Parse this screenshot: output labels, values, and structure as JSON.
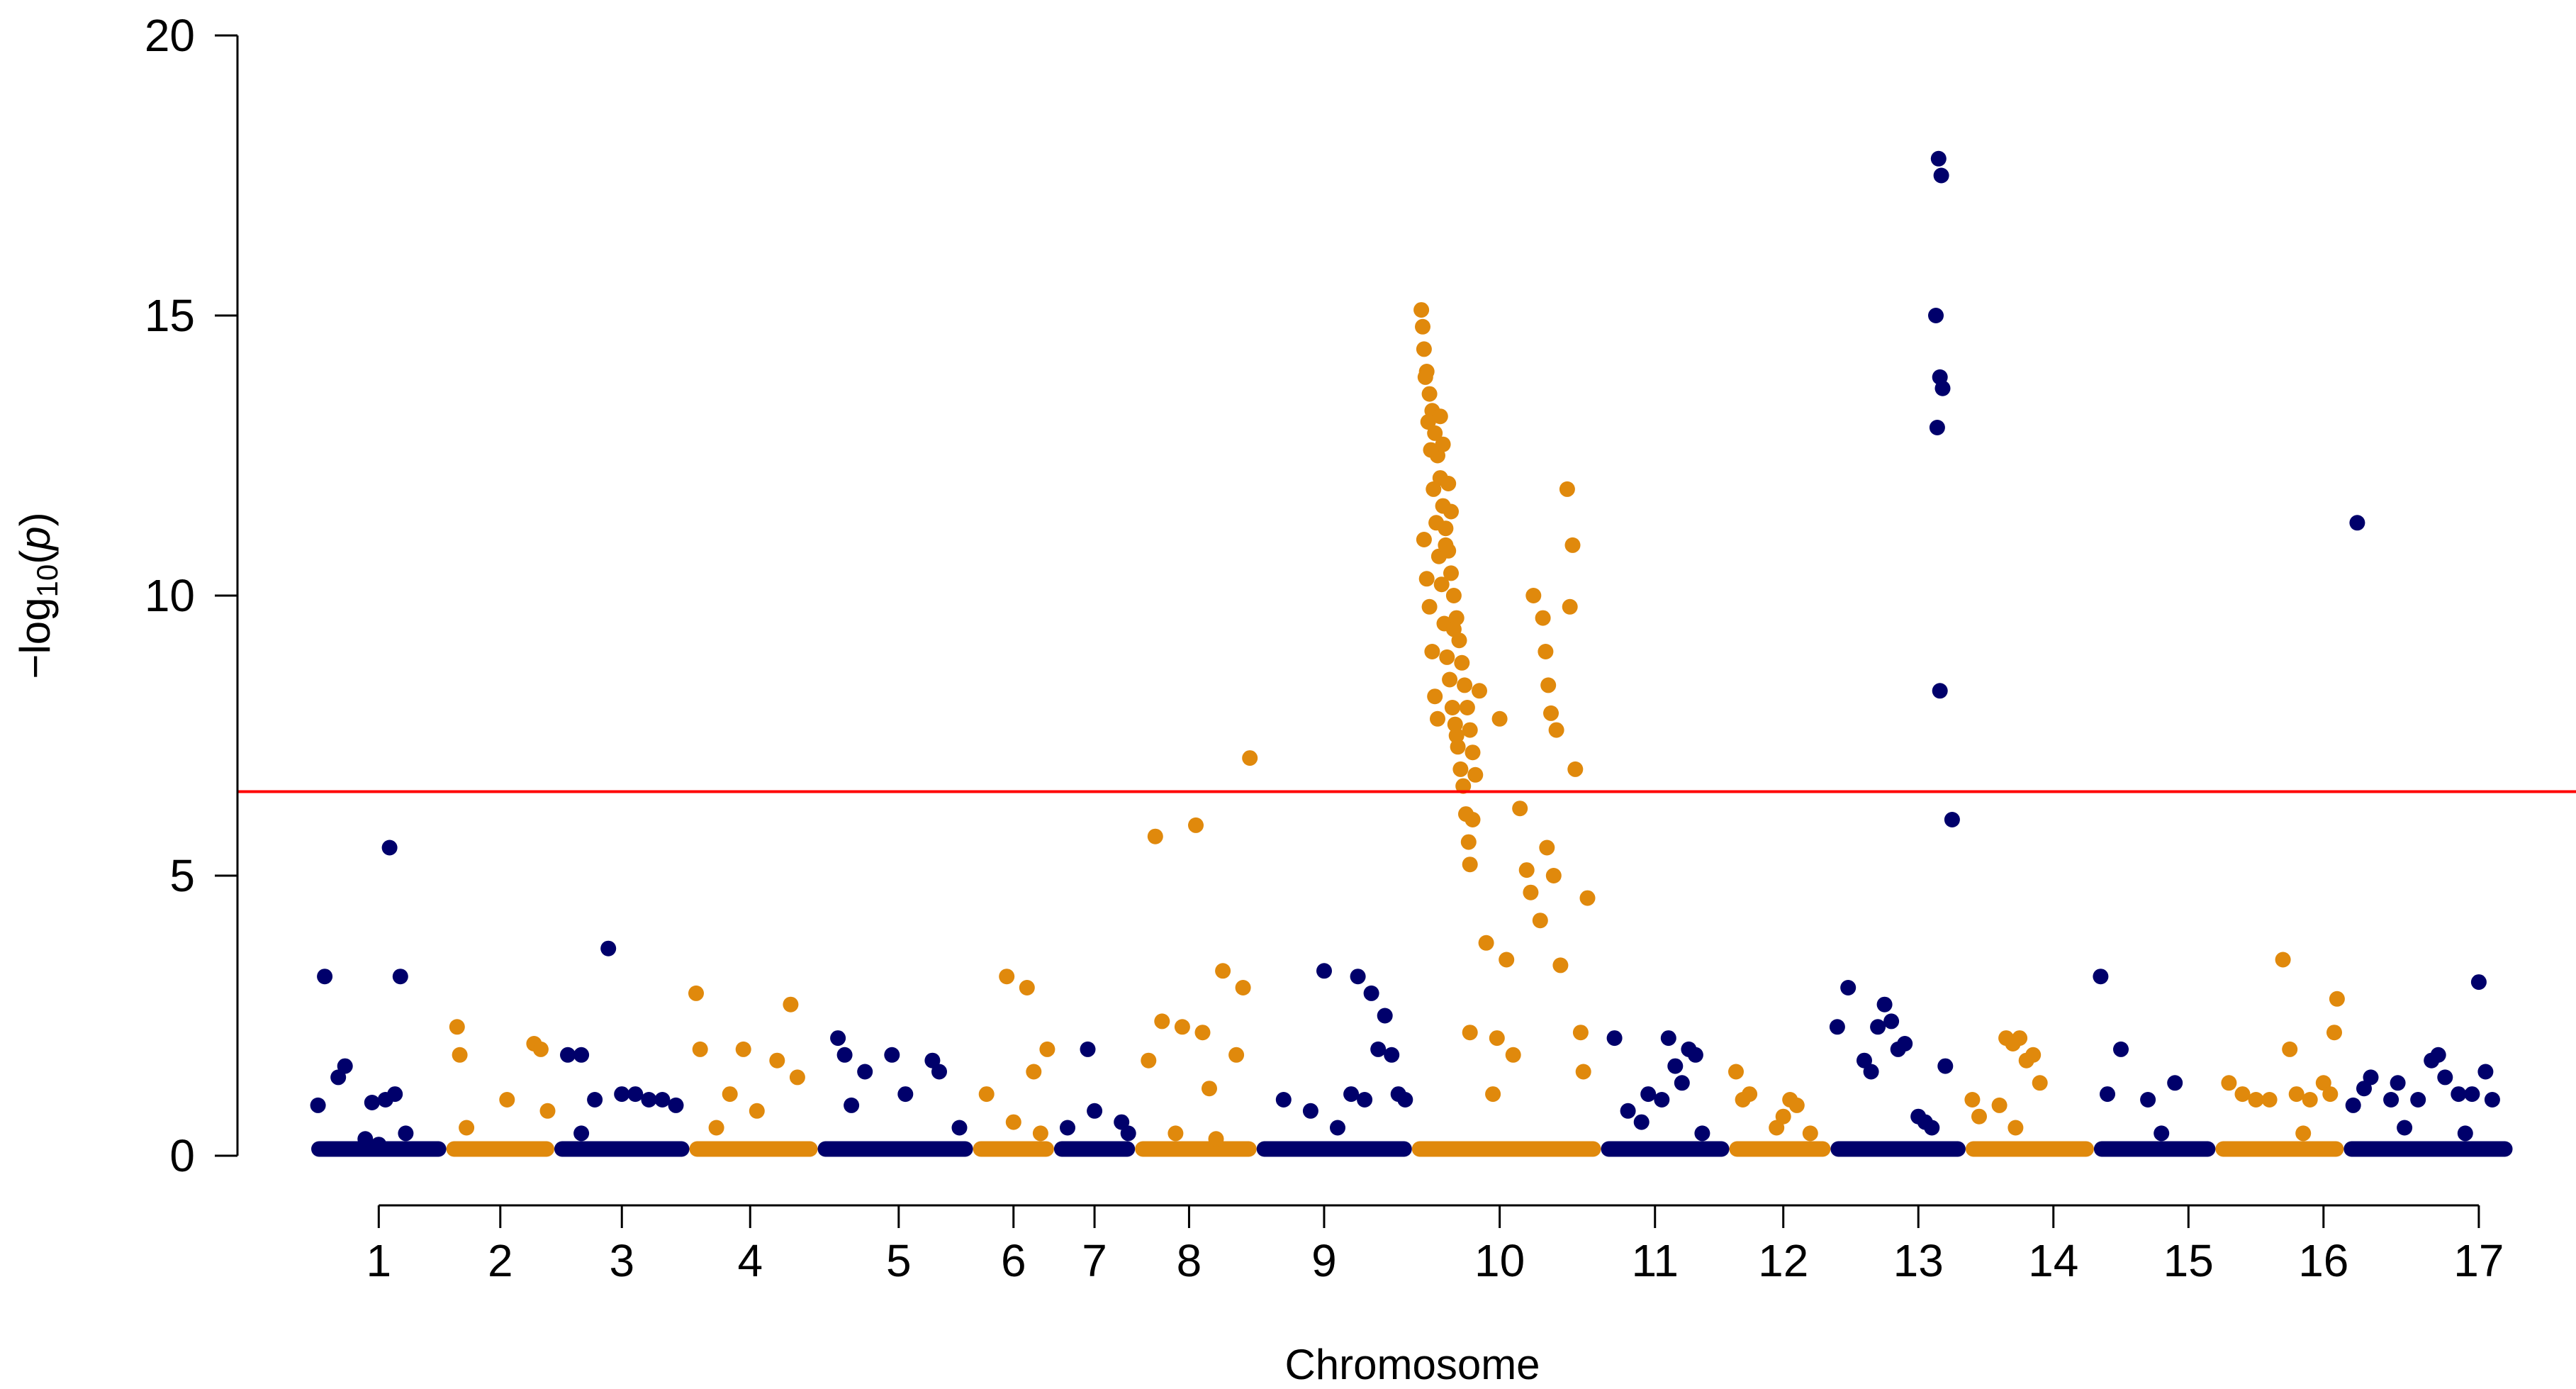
{
  "chart_data": {
    "type": "scatter",
    "subtype": "manhattan",
    "title": "",
    "xlabel": "Chromosome",
    "ylabel": "-log10(p)",
    "ylabel_parts": {
      "prefix": "−log",
      "sub": "10",
      "open": "(",
      "var": "p",
      "close": ")"
    },
    "ylim": [
      0,
      20
    ],
    "yticks": [
      0,
      5,
      10,
      15,
      20
    ],
    "threshold": 6.5,
    "colors": {
      "odd": "#00006B",
      "even": "#E0890C",
      "threshold": "#FF0000"
    },
    "chromosomes": [
      {
        "label": "1",
        "start": 0,
        "end": 100,
        "tick": 50
      },
      {
        "label": "2",
        "start": 100,
        "end": 180,
        "tick": 140
      },
      {
        "label": "3",
        "start": 180,
        "end": 280,
        "tick": 230
      },
      {
        "label": "4",
        "start": 280,
        "end": 375,
        "tick": 325
      },
      {
        "label": "5",
        "start": 375,
        "end": 490,
        "tick": 435
      },
      {
        "label": "6",
        "start": 490,
        "end": 550,
        "tick": 520
      },
      {
        "label": "7",
        "start": 550,
        "end": 610,
        "tick": 580
      },
      {
        "label": "8",
        "start": 610,
        "end": 700,
        "tick": 650
      },
      {
        "label": "9",
        "start": 700,
        "end": 815,
        "tick": 750
      },
      {
        "label": "10",
        "start": 815,
        "end": 955,
        "tick": 880
      },
      {
        "label": "11",
        "start": 955,
        "end": 1050,
        "tick": 995
      },
      {
        "label": "12",
        "start": 1050,
        "end": 1125,
        "tick": 1090
      },
      {
        "label": "13",
        "start": 1125,
        "end": 1225,
        "tick": 1190
      },
      {
        "label": "14",
        "start": 1225,
        "end": 1320,
        "tick": 1290
      },
      {
        "label": "15",
        "start": 1320,
        "end": 1410,
        "tick": 1390
      },
      {
        "label": "16",
        "start": 1410,
        "end": 1505,
        "tick": 1490
      },
      {
        "label": "17",
        "start": 1505,
        "end": 1630,
        "tick": 1605
      }
    ],
    "points": [
      [
        5,
        0.9
      ],
      [
        10,
        3.2
      ],
      [
        20,
        1.4
      ],
      [
        25,
        1.6
      ],
      [
        45,
        0.95
      ],
      [
        55,
        1.0
      ],
      [
        58,
        5.5
      ],
      [
        62,
        1.1
      ],
      [
        66,
        3.2
      ],
      [
        70,
        0.4
      ],
      [
        40,
        0.3
      ],
      [
        50,
        0.2
      ],
      [
        108,
        2.3
      ],
      [
        110,
        1.8
      ],
      [
        115,
        0.5
      ],
      [
        145,
        1.0
      ],
      [
        165,
        2.0
      ],
      [
        170,
        1.9
      ],
      [
        175,
        0.8
      ],
      [
        190,
        1.8
      ],
      [
        200,
        1.8
      ],
      [
        210,
        1.0
      ],
      [
        220,
        3.7
      ],
      [
        230,
        1.1
      ],
      [
        240,
        1.1
      ],
      [
        250,
        1.0
      ],
      [
        260,
        1.0
      ],
      [
        270,
        0.9
      ],
      [
        200,
        0.4
      ],
      [
        285,
        2.9
      ],
      [
        288,
        1.9
      ],
      [
        310,
        1.1
      ],
      [
        320,
        1.9
      ],
      [
        330,
        0.8
      ],
      [
        345,
        1.7
      ],
      [
        355,
        2.7
      ],
      [
        360,
        1.4
      ],
      [
        300,
        0.5
      ],
      [
        390,
        2.1
      ],
      [
        395,
        1.8
      ],
      [
        410,
        1.5
      ],
      [
        430,
        1.8
      ],
      [
        440,
        1.1
      ],
      [
        460,
        1.7
      ],
      [
        465,
        1.5
      ],
      [
        480,
        0.5
      ],
      [
        400,
        0.9
      ],
      [
        500,
        1.1
      ],
      [
        515,
        3.2
      ],
      [
        530,
        3.0
      ],
      [
        535,
        1.5
      ],
      [
        545,
        1.9
      ],
      [
        540,
        0.4
      ],
      [
        520,
        0.6
      ],
      [
        560,
        0.5
      ],
      [
        575,
        1.9
      ],
      [
        580,
        0.8
      ],
      [
        600,
        0.6
      ],
      [
        605,
        0.4
      ],
      [
        620,
        1.7
      ],
      [
        625,
        5.7
      ],
      [
        630,
        2.4
      ],
      [
        645,
        2.3
      ],
      [
        655,
        5.9
      ],
      [
        660,
        2.2
      ],
      [
        665,
        1.2
      ],
      [
        675,
        3.3
      ],
      [
        685,
        1.8
      ],
      [
        690,
        3.0
      ],
      [
        695,
        7.1
      ],
      [
        640,
        0.4
      ],
      [
        670,
        0.3
      ],
      [
        720,
        1.0
      ],
      [
        740,
        0.8
      ],
      [
        750,
        3.3
      ],
      [
        770,
        1.1
      ],
      [
        775,
        3.2
      ],
      [
        780,
        1.0
      ],
      [
        785,
        2.9
      ],
      [
        790,
        1.9
      ],
      [
        795,
        2.5
      ],
      [
        800,
        1.8
      ],
      [
        805,
        1.1
      ],
      [
        810,
        1.0
      ],
      [
        760,
        0.5
      ],
      [
        822,
        15.1
      ],
      [
        824,
        14.4
      ],
      [
        826,
        14.0
      ],
      [
        828,
        13.6
      ],
      [
        830,
        13.3
      ],
      [
        832,
        12.9
      ],
      [
        834,
        12.5
      ],
      [
        836,
        12.1
      ],
      [
        838,
        11.6
      ],
      [
        840,
        11.2
      ],
      [
        842,
        10.8
      ],
      [
        844,
        10.4
      ],
      [
        846,
        10.0
      ],
      [
        848,
        9.6
      ],
      [
        850,
        9.2
      ],
      [
        852,
        8.8
      ],
      [
        854,
        8.4
      ],
      [
        856,
        8.0
      ],
      [
        858,
        7.6
      ],
      [
        860,
        7.2
      ],
      [
        862,
        6.8
      ],
      [
        823,
        14.8
      ],
      [
        825,
        13.9
      ],
      [
        827,
        13.1
      ],
      [
        829,
        12.6
      ],
      [
        831,
        11.9
      ],
      [
        833,
        11.3
      ],
      [
        835,
        10.7
      ],
      [
        837,
        10.2
      ],
      [
        839,
        9.5
      ],
      [
        841,
        8.9
      ],
      [
        843,
        8.5
      ],
      [
        845,
        8.0
      ],
      [
        847,
        7.7
      ],
      [
        849,
        7.3
      ],
      [
        851,
        6.9
      ],
      [
        853,
        6.6
      ],
      [
        824,
        11.0
      ],
      [
        826,
        10.3
      ],
      [
        828,
        9.8
      ],
      [
        830,
        9.0
      ],
      [
        832,
        8.2
      ],
      [
        834,
        7.8
      ],
      [
        836,
        13.2
      ],
      [
        838,
        12.7
      ],
      [
        840,
        10.9
      ],
      [
        842,
        12.0
      ],
      [
        844,
        11.5
      ],
      [
        846,
        9.4
      ],
      [
        848,
        7.5
      ],
      [
        855,
        6.1
      ],
      [
        860,
        6.0
      ],
      [
        857,
        5.6
      ],
      [
        858,
        5.2
      ],
      [
        865,
        8.3
      ],
      [
        870,
        3.8
      ],
      [
        880,
        7.8
      ],
      [
        885,
        3.5
      ],
      [
        878,
        2.1
      ],
      [
        890,
        1.8
      ],
      [
        895,
        6.2
      ],
      [
        900,
        5.1
      ],
      [
        903,
        4.7
      ],
      [
        905,
        10.0
      ],
      [
        910,
        4.2
      ],
      [
        912,
        9.6
      ],
      [
        914,
        9.0
      ],
      [
        915,
        5.5
      ],
      [
        916,
        8.4
      ],
      [
        918,
        7.9
      ],
      [
        920,
        5.0
      ],
      [
        922,
        7.6
      ],
      [
        925,
        3.4
      ],
      [
        930,
        11.9
      ],
      [
        932,
        9.8
      ],
      [
        934,
        10.9
      ],
      [
        936,
        6.9
      ],
      [
        940,
        2.2
      ],
      [
        942,
        1.5
      ],
      [
        945,
        4.6
      ],
      [
        858,
        2.2
      ],
      [
        875,
        1.1
      ],
      [
        965,
        2.1
      ],
      [
        975,
        0.8
      ],
      [
        990,
        1.1
      ],
      [
        1000,
        1.0
      ],
      [
        1005,
        2.1
      ],
      [
        1010,
        1.6
      ],
      [
        1015,
        1.3
      ],
      [
        1020,
        1.9
      ],
      [
        1025,
        1.8
      ],
      [
        985,
        0.6
      ],
      [
        1030,
        0.4
      ],
      [
        1055,
        1.5
      ],
      [
        1060,
        1.0
      ],
      [
        1065,
        1.1
      ],
      [
        1085,
        0.5
      ],
      [
        1095,
        1.0
      ],
      [
        1100,
        0.9
      ],
      [
        1110,
        0.4
      ],
      [
        1090,
        0.7
      ],
      [
        1130,
        2.3
      ],
      [
        1138,
        3.0
      ],
      [
        1150,
        1.7
      ],
      [
        1155,
        1.5
      ],
      [
        1160,
        2.3
      ],
      [
        1165,
        2.7
      ],
      [
        1170,
        2.4
      ],
      [
        1175,
        1.9
      ],
      [
        1180,
        2.0
      ],
      [
        1190,
        0.7
      ],
      [
        1195,
        0.6
      ],
      [
        1205,
        17.8
      ],
      [
        1207,
        17.5
      ],
      [
        1203,
        15.0
      ],
      [
        1206,
        13.9
      ],
      [
        1208,
        13.7
      ],
      [
        1204,
        13.0
      ],
      [
        1206,
        8.3
      ],
      [
        1215,
        6.0
      ],
      [
        1210,
        1.6
      ],
      [
        1200,
        0.5
      ],
      [
        1230,
        1.0
      ],
      [
        1235,
        0.7
      ],
      [
        1255,
        2.1
      ],
      [
        1260,
        2.0
      ],
      [
        1265,
        2.1
      ],
      [
        1270,
        1.7
      ],
      [
        1275,
        1.8
      ],
      [
        1280,
        1.3
      ],
      [
        1250,
        0.9
      ],
      [
        1262,
        0.5
      ],
      [
        1325,
        3.2
      ],
      [
        1340,
        1.9
      ],
      [
        1360,
        1.0
      ],
      [
        1380,
        1.3
      ],
      [
        1330,
        1.1
      ],
      [
        1370,
        0.4
      ],
      [
        1420,
        1.3
      ],
      [
        1430,
        1.1
      ],
      [
        1440,
        1.0
      ],
      [
        1450,
        1.0
      ],
      [
        1460,
        3.5
      ],
      [
        1465,
        1.9
      ],
      [
        1470,
        1.1
      ],
      [
        1480,
        1.0
      ],
      [
        1490,
        1.3
      ],
      [
        1495,
        1.1
      ],
      [
        1500,
        2.8
      ],
      [
        1498,
        2.2
      ],
      [
        1475,
        0.4
      ],
      [
        1512,
        0.9
      ],
      [
        1515,
        11.3
      ],
      [
        1520,
        1.2
      ],
      [
        1525,
        1.4
      ],
      [
        1540,
        1.0
      ],
      [
        1545,
        1.3
      ],
      [
        1560,
        1.0
      ],
      [
        1570,
        1.7
      ],
      [
        1575,
        1.8
      ],
      [
        1580,
        1.4
      ],
      [
        1590,
        1.1
      ],
      [
        1600,
        1.1
      ],
      [
        1605,
        3.1
      ],
      [
        1610,
        1.5
      ],
      [
        1615,
        1.0
      ],
      [
        1550,
        0.5
      ],
      [
        1595,
        0.4
      ]
    ]
  }
}
